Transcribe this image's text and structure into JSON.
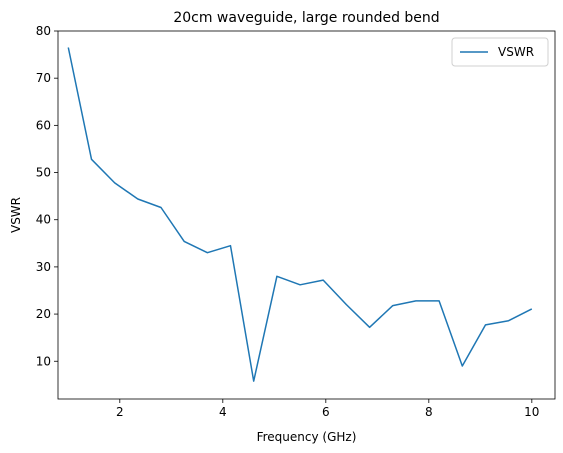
{
  "chart_data": {
    "type": "line",
    "title": "20cm waveguide, large rounded bend",
    "xlabel": "Frequency (GHz)",
    "ylabel": "VSWR",
    "xlim": [
      0.8,
      10.45
    ],
    "ylim": [
      2,
      80
    ],
    "xticks": [
      2,
      4,
      6,
      8,
      10
    ],
    "yticks": [
      10,
      20,
      30,
      40,
      50,
      60,
      70,
      80
    ],
    "grid": false,
    "legend": "top-right",
    "series": [
      {
        "name": "VSWR",
        "color": "#1f77b4",
        "x": [
          1.0,
          1.45,
          1.9,
          2.35,
          2.8,
          3.25,
          3.7,
          4.15,
          4.6,
          5.05,
          5.5,
          5.95,
          6.4,
          6.85,
          7.3,
          7.75,
          8.2,
          8.65,
          9.1,
          9.55,
          10.0
        ],
        "y": [
          76.5,
          52.8,
          47.8,
          44.4,
          42.6,
          35.4,
          33.0,
          34.5,
          5.8,
          28.0,
          26.2,
          27.2,
          22.0,
          17.2,
          21.8,
          22.8,
          22.8,
          9.0,
          17.7,
          18.6,
          21.1
        ]
      }
    ]
  }
}
